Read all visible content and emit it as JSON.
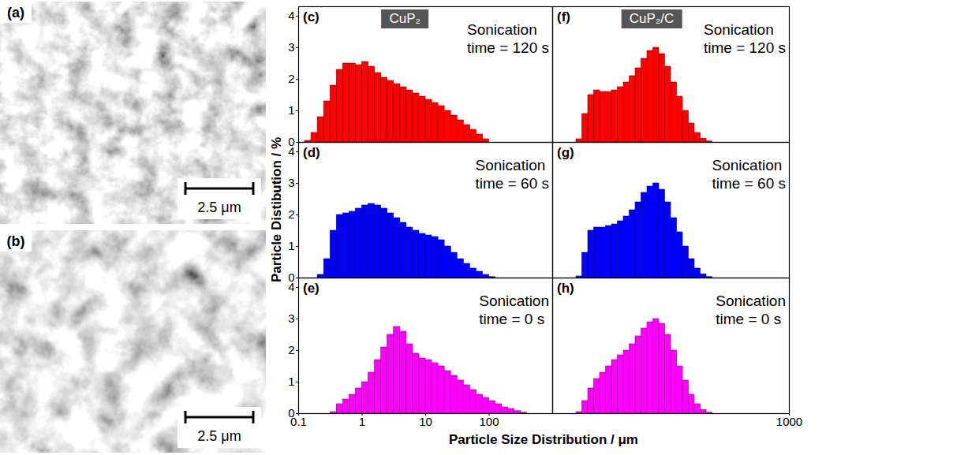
{
  "images": [
    {
      "label": "(a)",
      "scale_bar": "2.5 μm"
    },
    {
      "label": "(b)",
      "scale_bar": "2.5 μm"
    }
  ],
  "figure": {
    "ylabel": "Particle Distibution / %",
    "xlabel": "Particle Size Distribution / μm"
  },
  "chart_data": [
    {
      "type": "histogram",
      "label": "(c)",
      "title": "CuP₂",
      "annotation": "Sonication time = 120 s",
      "color": "#ff0000",
      "log": "x",
      "xlim": [
        0.1,
        1000
      ],
      "xticks": [
        0.1,
        1,
        10,
        100
      ],
      "ylim": [
        0,
        4.3
      ],
      "yticks": [
        0,
        1,
        2,
        3,
        4
      ],
      "tick_labels": "y",
      "bins": [
        0.1,
        0.1259,
        0.1585,
        0.1995,
        0.2512,
        0.3162,
        0.3981,
        0.5012,
        0.631,
        0.7943,
        1,
        1.259,
        1.585,
        1.995,
        2.512,
        3.162,
        3.981,
        5.012,
        6.31,
        7.943,
        10,
        12.59,
        15.85,
        19.95,
        25.12,
        31.62,
        39.81,
        50.12,
        63.1,
        79.43,
        100,
        125.9,
        158.5,
        199.5,
        251.2,
        316.2,
        398.1,
        501.2
      ],
      "values": [
        0,
        0.05,
        0.3,
        0.8,
        1.3,
        1.8,
        2.3,
        2.5,
        2.5,
        2.45,
        2.55,
        2.4,
        2.2,
        2.05,
        1.95,
        1.85,
        1.75,
        1.65,
        1.55,
        1.45,
        1.35,
        1.25,
        1.15,
        1,
        0.85,
        0.7,
        0.55,
        0.4,
        0.25,
        0.1,
        0,
        0,
        0,
        0,
        0,
        0,
        0
      ]
    },
    {
      "type": "histogram",
      "label": "(d)",
      "annotation": "Sonication time = 60 s",
      "color": "#0000ff",
      "log": "x",
      "xlim": [
        0.1,
        1000
      ],
      "xticks": [
        0.1,
        1,
        10,
        100
      ],
      "ylim": [
        0,
        4.3
      ],
      "yticks": [
        0,
        1,
        2,
        3,
        4
      ],
      "tick_labels": "y",
      "bins": [
        0.1,
        0.1259,
        0.1585,
        0.1995,
        0.2512,
        0.3162,
        0.3981,
        0.5012,
        0.631,
        0.7943,
        1,
        1.259,
        1.585,
        1.995,
        2.512,
        3.162,
        3.981,
        5.012,
        6.31,
        7.943,
        10,
        12.59,
        15.85,
        19.95,
        25.12,
        31.62,
        39.81,
        50.12,
        63.1,
        79.43,
        100,
        125.9,
        158.5,
        199.5,
        251.2,
        316.2,
        398.1,
        501.2
      ],
      "values": [
        0,
        0,
        0,
        0.1,
        0.6,
        1.5,
        2,
        2.05,
        2.1,
        2.2,
        2.3,
        2.35,
        2.3,
        2.2,
        2.05,
        1.9,
        1.75,
        1.6,
        1.5,
        1.4,
        1.35,
        1.3,
        1.2,
        1,
        0.8,
        0.6,
        0.45,
        0.3,
        0.2,
        0.1,
        0.03,
        0,
        0,
        0,
        0,
        0,
        0
      ]
    },
    {
      "type": "histogram",
      "label": "(e)",
      "annotation": "Sonication time = 0 s",
      "color": "#ff00ff",
      "log": "x",
      "xlim": [
        0.1,
        1000
      ],
      "xticks": [
        0.1,
        1,
        10,
        100
      ],
      "ylim": [
        0,
        4.3
      ],
      "yticks": [
        0,
        1,
        2,
        3,
        4
      ],
      "bins": [
        0.1,
        0.1259,
        0.1585,
        0.1995,
        0.2512,
        0.3162,
        0.3981,
        0.5012,
        0.631,
        0.7943,
        1,
        1.259,
        1.585,
        1.995,
        2.512,
        3.162,
        3.981,
        5.012,
        6.31,
        7.943,
        10,
        12.59,
        15.85,
        19.95,
        25.12,
        31.62,
        39.81,
        50.12,
        63.1,
        79.43,
        100,
        125.9,
        158.5,
        199.5,
        251.2,
        316.2,
        398.1,
        501.2
      ],
      "values": [
        0,
        0,
        0,
        0,
        0,
        0.05,
        0.3,
        0.45,
        0.6,
        0.8,
        1,
        1.3,
        1.7,
        2.1,
        2.5,
        2.75,
        2.6,
        2.2,
        1.9,
        1.75,
        1.7,
        1.6,
        1.5,
        1.35,
        1.2,
        1.05,
        0.9,
        0.75,
        0.6,
        0.5,
        0.4,
        0.3,
        0.2,
        0.15,
        0.08,
        0.03,
        0
      ]
    },
    {
      "type": "histogram",
      "label": "(f)",
      "title": "CuP₂/C",
      "annotation": "Sonication time = 120 s",
      "color": "#ff0000",
      "log": "x",
      "xlim": [
        0.1,
        1000
      ],
      "xticks": [
        1000
      ],
      "ylim": [
        0,
        4.3
      ],
      "yticks": [
        0,
        1,
        2,
        3,
        4
      ],
      "tick_labels": false,
      "bins": [
        0.1,
        0.1259,
        0.1585,
        0.1995,
        0.2512,
        0.3162,
        0.3981,
        0.5012,
        0.631,
        0.7943,
        1,
        1.259,
        1.585,
        1.995,
        2.512,
        3.162,
        3.981,
        5.012,
        6.31,
        7.943,
        10,
        12.59,
        15.85,
        19.95,
        25.12,
        31.62,
        39.81,
        50.12,
        63.1,
        79.43,
        100,
        125.9,
        158.5,
        199.5,
        251.2,
        316.2,
        398.1,
        501.2
      ],
      "values": [
        0,
        0,
        0,
        0,
        0.1,
        0.9,
        1.5,
        1.65,
        1.6,
        1.6,
        1.65,
        1.75,
        1.9,
        2.1,
        2.35,
        2.65,
        2.9,
        3,
        2.8,
        2.4,
        1.9,
        1.45,
        1,
        0.6,
        0.3,
        0.12,
        0.03,
        0,
        0,
        0,
        0,
        0,
        0,
        0,
        0,
        0,
        0
      ]
    },
    {
      "type": "histogram",
      "label": "(g)",
      "annotation": "Sonication time = 60 s",
      "color": "#0000ff",
      "log": "x",
      "xlim": [
        0.1,
        1000
      ],
      "xticks": [
        1000
      ],
      "ylim": [
        0,
        4.3
      ],
      "yticks": [
        0,
        1,
        2,
        3,
        4
      ],
      "tick_labels": false,
      "bins": [
        0.1,
        0.1259,
        0.1585,
        0.1995,
        0.2512,
        0.3162,
        0.3981,
        0.5012,
        0.631,
        0.7943,
        1,
        1.259,
        1.585,
        1.995,
        2.512,
        3.162,
        3.981,
        5.012,
        6.31,
        7.943,
        10,
        12.59,
        15.85,
        19.95,
        25.12,
        31.62,
        39.81,
        50.12,
        63.1,
        79.43,
        100,
        125.9,
        158.5,
        199.5,
        251.2,
        316.2,
        398.1,
        501.2
      ],
      "values": [
        0,
        0,
        0,
        0,
        0.05,
        0.8,
        1.5,
        1.6,
        1.6,
        1.65,
        1.7,
        1.8,
        1.95,
        2.15,
        2.4,
        2.7,
        2.9,
        3,
        2.8,
        2.4,
        1.9,
        1.45,
        1,
        0.6,
        0.3,
        0.12,
        0.03,
        0,
        0,
        0,
        0,
        0,
        0,
        0,
        0,
        0,
        0
      ]
    },
    {
      "type": "histogram",
      "label": "(h)",
      "annotation": "Sonication time = 0 s",
      "color": "#ff00ff",
      "log": "x",
      "xlim": [
        0.1,
        1000
      ],
      "xticks": [
        1000
      ],
      "ylim": [
        0,
        4.3
      ],
      "yticks": [
        0,
        1,
        2,
        3,
        4
      ],
      "tick_labels": "x",
      "bins": [
        0.1,
        0.1259,
        0.1585,
        0.1995,
        0.2512,
        0.3162,
        0.3981,
        0.5012,
        0.631,
        0.7943,
        1,
        1.259,
        1.585,
        1.995,
        2.512,
        3.162,
        3.981,
        5.012,
        6.31,
        7.943,
        10,
        12.59,
        15.85,
        19.95,
        25.12,
        31.62,
        39.81,
        50.12,
        63.1,
        79.43,
        100,
        125.9,
        158.5,
        199.5,
        251.2,
        316.2,
        398.1,
        501.2
      ],
      "values": [
        0,
        0,
        0,
        0,
        0.05,
        0.4,
        0.8,
        1.1,
        1.3,
        1.5,
        1.7,
        1.85,
        2,
        2.2,
        2.45,
        2.7,
        2.9,
        3,
        2.85,
        2.5,
        2,
        1.5,
        1.05,
        0.6,
        0.3,
        0.12,
        0.03,
        0,
        0,
        0,
        0,
        0,
        0,
        0,
        0,
        0,
        0
      ]
    }
  ]
}
